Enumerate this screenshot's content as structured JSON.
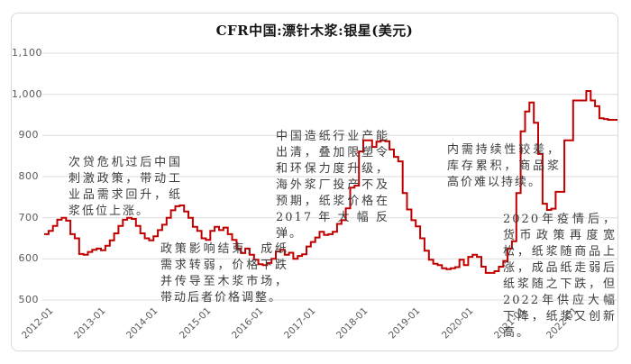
{
  "figure": {
    "title": "CFR中国:漂针木浆:银星(美元)"
  },
  "annotations": [
    {
      "text": "次贷危机过后中国刺激政策，带动工业品需求回升，纸浆低位上涨。"
    },
    {
      "text": "政策影响结束，成纸需求转弱，价格下跌并传导至木浆市场，带动后者价格调整。"
    },
    {
      "text": "中国造纸行业产能出清，叠加限塑令和环保力度升级，海外浆厂投产不及预期，纸浆价格在2017年大幅反弹。"
    },
    {
      "text": "内需持续性较差，库存累积，商品浆高价难以持续。"
    },
    {
      "text": "2020年疫情后，货币政策再度宽松，纸浆随商品上涨，成品纸走弱后纸浆随之下跌，但2022年供应大幅下降，纸浆又创新高。"
    }
  ],
  "chart_data": {
    "type": "line",
    "title": "CFR中国:漂针木浆:银星(美元)",
    "series_name": "CFR中国:漂针木浆:银星",
    "unit": "美元",
    "frequency": "monthly",
    "x_start": "2012-01",
    "x_end": "2022-12",
    "x_ticks": [
      "2012-01",
      "2013-01",
      "2014-01",
      "2015-01",
      "2016-01",
      "2017-01",
      "2018-01",
      "2019-01",
      "2020-01",
      "2021-01",
      "2022-01"
    ],
    "y_tick_labels": [
      "1,100",
      "1,000",
      "900",
      "800",
      "700",
      "600",
      "500"
    ],
    "y_tick_values": [
      1100,
      1000,
      900,
      800,
      700,
      600,
      500
    ],
    "ylim": [
      500,
      1100
    ],
    "grid": true,
    "line_color": "#c00000",
    "line_style": "step",
    "values": [
      660,
      668,
      680,
      695,
      700,
      693,
      660,
      650,
      612,
      610,
      617,
      622,
      625,
      621,
      632,
      645,
      662,
      680,
      695,
      700,
      697,
      680,
      662,
      650,
      645,
      655,
      670,
      683,
      700,
      718,
      728,
      730,
      715,
      700,
      678,
      668,
      650,
      646,
      668,
      678,
      670,
      676,
      660,
      646,
      625,
      614,
      625,
      610,
      598,
      587,
      585,
      590,
      600,
      618,
      622,
      610,
      615,
      600,
      607,
      611,
      630,
      641,
      652,
      666,
      658,
      660,
      666,
      685,
      694,
      723,
      773,
      778,
      861,
      888,
      888,
      872,
      885,
      888,
      886,
      866,
      848,
      837,
      760,
      720,
      694,
      679,
      650,
      620,
      598,
      588,
      585,
      577,
      575,
      577,
      580,
      598,
      585,
      605,
      610,
      605,
      581,
      566,
      566,
      570,
      581,
      595,
      625,
      643,
      760,
      910,
      958,
      980,
      931,
      855,
      734,
      719,
      722,
      763,
      763,
      888,
      888,
      985,
      985,
      985,
      1008,
      985,
      971,
      942,
      940,
      938,
      938,
      938
    ]
  }
}
